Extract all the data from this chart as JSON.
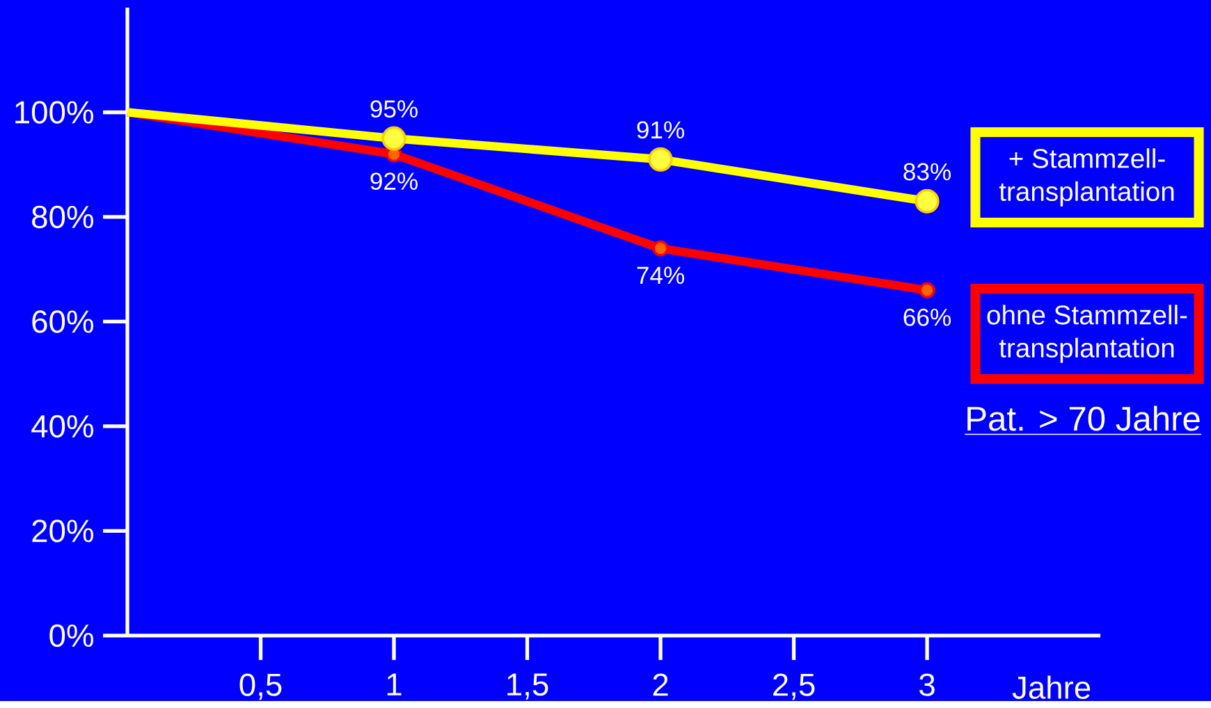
{
  "chart_data": {
    "type": "line",
    "x": [
      0,
      1,
      2,
      3
    ],
    "xlim": [
      0,
      3.65
    ],
    "ylim": [
      0,
      120
    ],
    "xticks": [
      {
        "value": 0.5,
        "label": "0,5"
      },
      1,
      {
        "value": 1.5,
        "label": "1,5"
      },
      2,
      {
        "value": 2.5,
        "label": "2,5"
      },
      3
    ],
    "yticks": [
      {
        "value": 0,
        "label": "0%"
      },
      {
        "value": 20,
        "label": "20%"
      },
      {
        "value": 40,
        "label": "40%"
      },
      {
        "value": 60,
        "label": "60%"
      },
      {
        "value": 80,
        "label": "80%"
      },
      {
        "value": 100,
        "label": "100%"
      }
    ],
    "xlabel": "Jahre",
    "marker": "circle",
    "legend": "right",
    "grid": false,
    "series": [
      {
        "name": "+ Stammzell-transplantation",
        "color": "#ffff00",
        "values": [
          100,
          95,
          91,
          83
        ],
        "value_labels": [
          null,
          "95%",
          "91%",
          "83%"
        ]
      },
      {
        "name": "ohne Stammzell-transplantation",
        "color": "#ff0000",
        "values": [
          100,
          92,
          74,
          66
        ],
        "value_labels": [
          null,
          "92%",
          "74%",
          "66%"
        ]
      }
    ],
    "annotations": [
      "Pat. > 70 Jahre"
    ]
  }
}
